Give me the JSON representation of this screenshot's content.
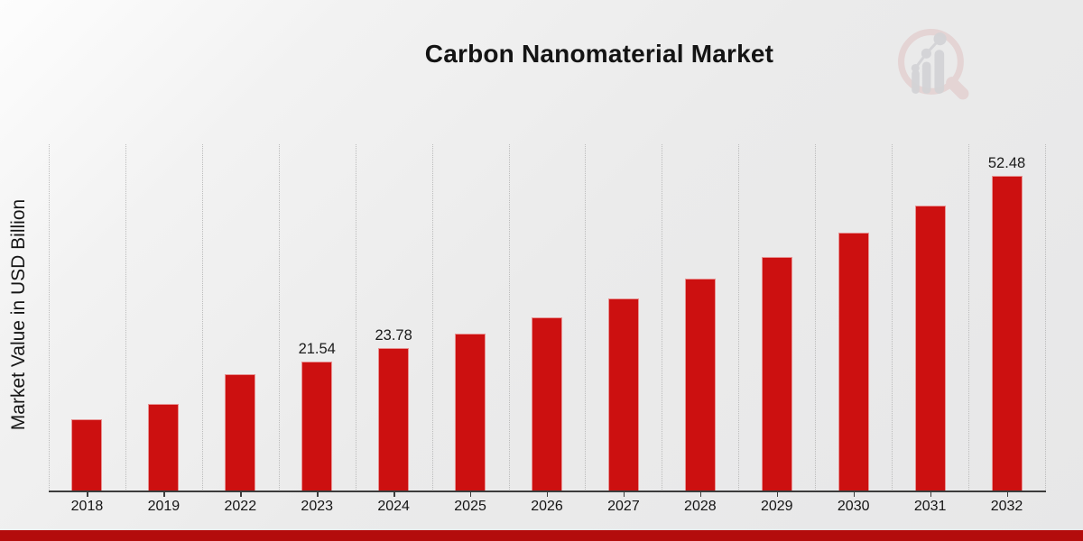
{
  "chart_data": {
    "type": "bar",
    "title": "Carbon Nanomaterial Market",
    "ylabel": "Market Value in USD Billion",
    "xlabel": "",
    "categories": [
      "2018",
      "2019",
      "2022",
      "2023",
      "2024",
      "2025",
      "2026",
      "2027",
      "2028",
      "2029",
      "2030",
      "2031",
      "2032"
    ],
    "values": [
      12.0,
      14.6,
      19.5,
      21.54,
      23.78,
      26.25,
      28.98,
      32.0,
      35.33,
      39.0,
      43.06,
      47.54,
      52.48
    ],
    "bar_labels": [
      "",
      "",
      "",
      "21.54",
      "23.78",
      "",
      "",
      "",
      "",
      "",
      "",
      "",
      "52.48"
    ],
    "ylim": [
      0,
      57.7
    ],
    "grid": "vertical-dotted-category-boundaries",
    "legend_position": "none",
    "colors": {
      "bar": "#cc1010",
      "grid": "#bcbcbc",
      "axis": "#3c3c3c",
      "text": "#141414",
      "background_light": "#fdfdfd",
      "background_gray": "#e9e9ea"
    }
  },
  "footer": {
    "accent_band_color": "#b30c0c"
  },
  "logo": {
    "icon": "magnifier-bar-chart-watermark",
    "ring_color": "#dcbaba",
    "glyph_color": "#cfcfd2"
  }
}
